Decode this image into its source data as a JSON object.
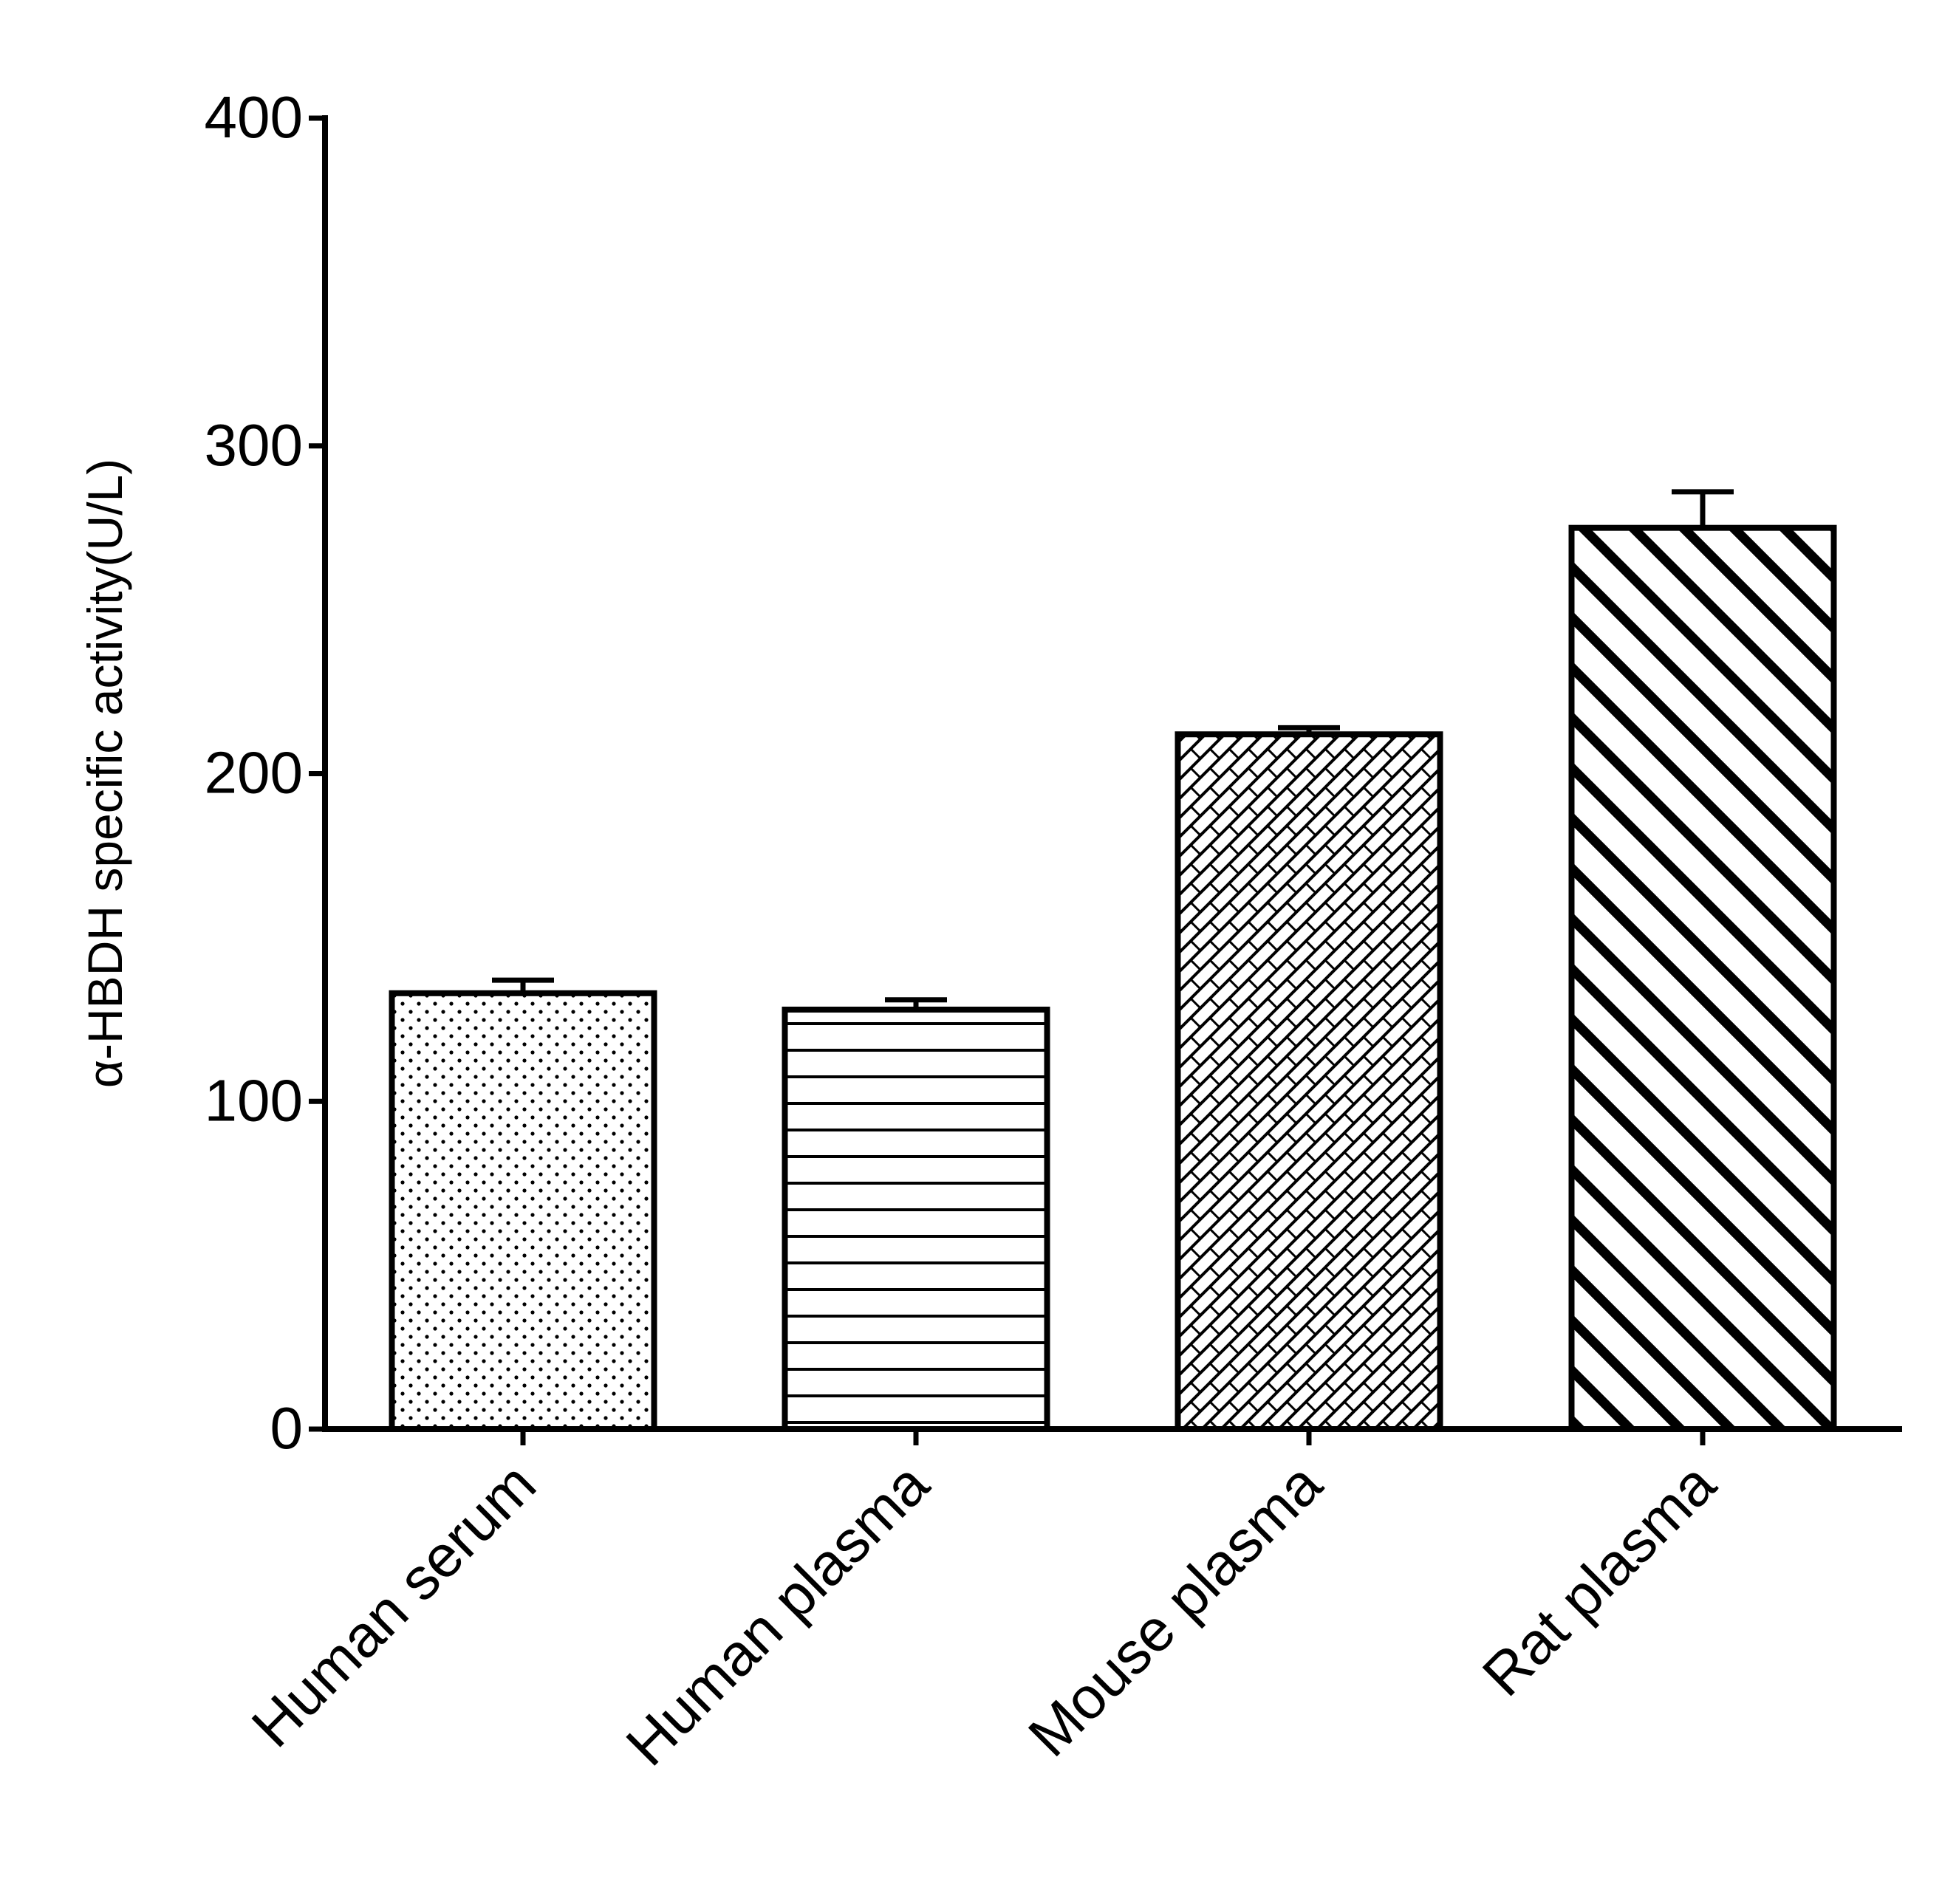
{
  "chart_data": {
    "type": "bar",
    "title": "",
    "xlabel": "",
    "ylabel": "α-HBDH specific activity(U/L)",
    "ylim": [
      0,
      400
    ],
    "yticks": [
      0,
      100,
      200,
      300,
      400
    ],
    "grid": false,
    "legend": "none",
    "categories": [
      "Human serum",
      "Human plasma",
      "Mouse plasma",
      "Rat plasma"
    ],
    "values": [
      133,
      128,
      212,
      275
    ],
    "error": [
      4,
      3,
      2,
      11
    ],
    "patterns": [
      "dots",
      "horizontal-lines",
      "crosshatch",
      "diagonal-stripes"
    ],
    "colors": {
      "bar_stroke": "#000000",
      "bar_fill": "#ffffff",
      "axis": "#000000"
    }
  }
}
